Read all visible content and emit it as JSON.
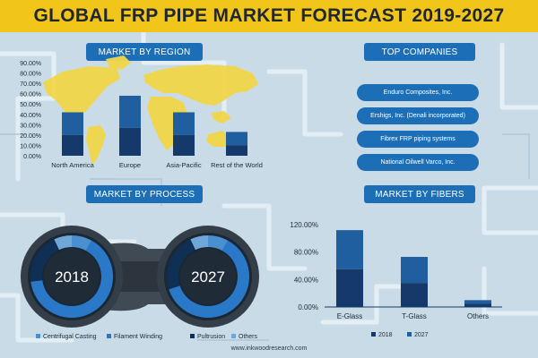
{
  "title": "GLOBAL FRP PIPE MARKET FORECAST 2019-2027",
  "footer": "www.inkwoodresearch.com",
  "colors": {
    "title_bar": "#f2c51a",
    "label_blue": "#1c6fb7",
    "bar_2018": "#14396a",
    "bar_2027": "#1f5f9f",
    "map": "#f2d64a",
    "background": "#c9dbe6"
  },
  "sections": {
    "region": "MARKET BY REGION",
    "companies": "TOP COMPANIES",
    "process": "MARKET BY PROCESS",
    "fibers": "MARKET BY FIBERS"
  },
  "companies": [
    "Enduro Composites, Inc.",
    "Ershigs, Inc. (Denali incorporated)",
    "Fibrex FRP piping systems",
    "National Oilwell Varco, Inc."
  ],
  "chart_data": [
    {
      "type": "bar",
      "name": "region",
      "categories": [
        "North America",
        "Europe",
        "Asia-Pacific",
        "Rest of the World"
      ],
      "series": [
        {
          "values": [
            20,
            27,
            20,
            10
          ]
        },
        {
          "values": [
            42,
            58,
            42,
            23
          ]
        }
      ],
      "ylim": [
        0,
        90
      ],
      "ytick_labels": [
        "90.00%",
        "80.00%",
        "70.00%",
        "60.00%",
        "50.00%",
        "40.00%",
        "30.00%",
        "20.00%",
        "10.00%",
        "0.00%"
      ],
      "grid": false,
      "legend": "none"
    },
    {
      "type": "pie",
      "name": "process",
      "charts": [
        {
          "label": "2018",
          "slices": [
            8,
            65,
            20,
            7
          ]
        },
        {
          "label": "2027",
          "slices": [
            8,
            62,
            23,
            7
          ]
        }
      ],
      "legend_entries": [
        "Centrifugal Casting",
        "Filament Winding",
        "Pultrusion",
        "Others"
      ],
      "slice_colors": [
        "#4a8fd0",
        "#2a78c8",
        "#0f2f55",
        "#6fa8d8"
      ],
      "legend": "bottom"
    },
    {
      "type": "bar",
      "name": "fibers",
      "categories": [
        "E-Glass",
        "T-Glass",
        "Others"
      ],
      "series": [
        {
          "name": "2018",
          "values": [
            55,
            35,
            5
          ]
        },
        {
          "name": "2027",
          "values": [
            112,
            73,
            10
          ]
        }
      ],
      "ylim": [
        0,
        120
      ],
      "ytick_labels": [
        "120.00%",
        "80.00%",
        "40.00%",
        "0.00%"
      ],
      "ytick_values": [
        120,
        80,
        40,
        0
      ],
      "grid": false,
      "legend": "bottom"
    }
  ]
}
